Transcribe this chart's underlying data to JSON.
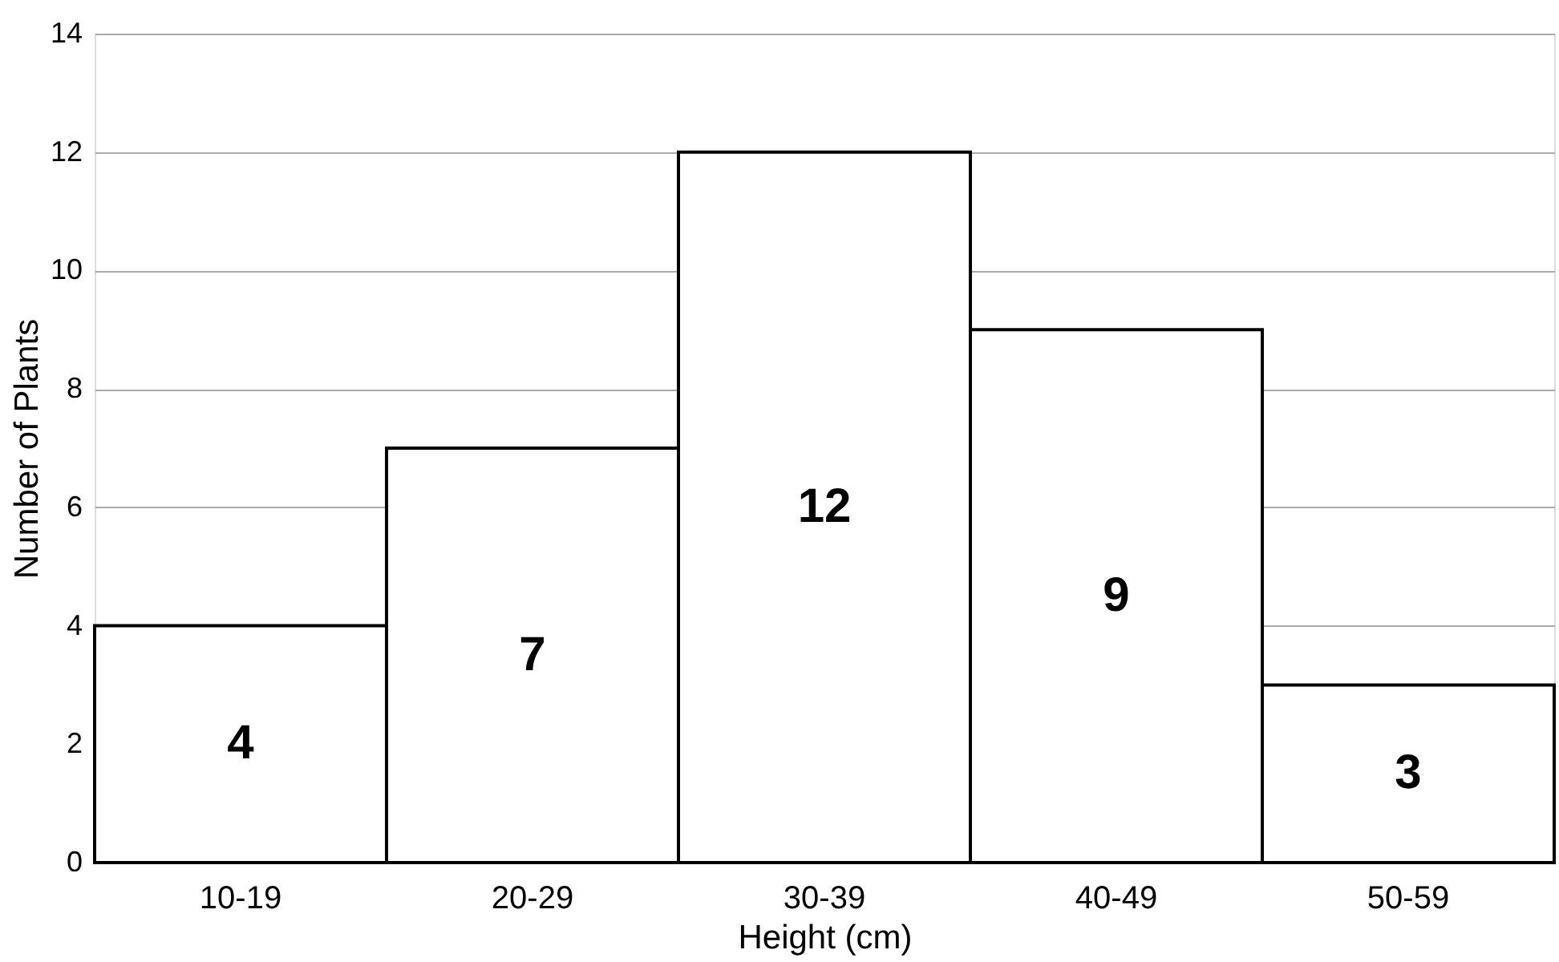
{
  "chart_data": {
    "type": "bar",
    "xlabel": "Height (cm)",
    "ylabel": "Number of Plants",
    "categories": [
      "10-19",
      "20-29",
      "30-39",
      "40-49",
      "50-59"
    ],
    "values": [
      4,
      7,
      12,
      9,
      3
    ],
    "color": "#ffffff",
    "ylim": [
      0,
      14
    ],
    "yticks": [
      0,
      2,
      4,
      6,
      8,
      10,
      12,
      14
    ],
    "grid": "y",
    "data_labels": true
  }
}
